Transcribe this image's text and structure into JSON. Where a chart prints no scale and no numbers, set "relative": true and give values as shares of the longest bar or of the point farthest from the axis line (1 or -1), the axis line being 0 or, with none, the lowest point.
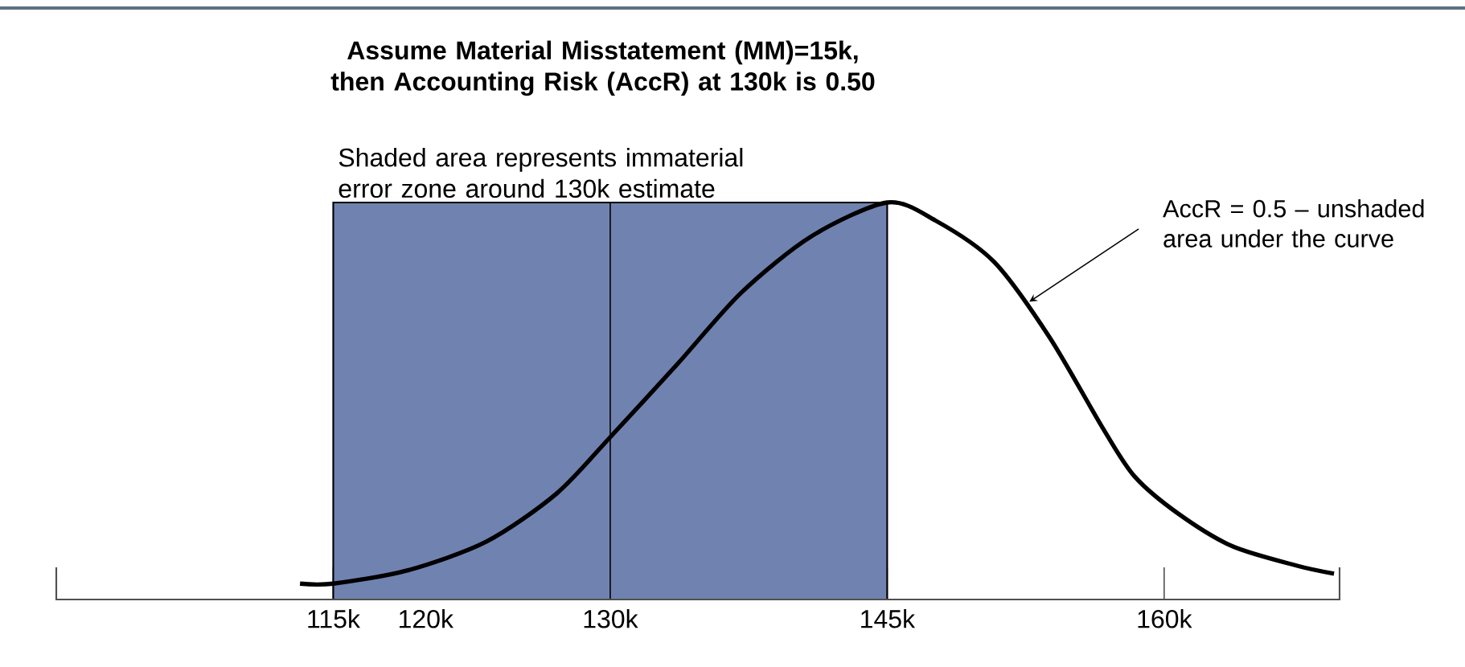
{
  "chart_data": {
    "type": "line",
    "relative": true,
    "title": "Assume Material Misstatement (MM)=15k, then Accounting Risk (AccR) at 130k is 0.50",
    "x": [
      113.2,
      115,
      119.0,
      123.3,
      127.1,
      130,
      133.6,
      137.1,
      140.9,
      145,
      147.6,
      150.8,
      153.8,
      156.7,
      158.4,
      160.8,
      163.7,
      167.2,
      169.2
    ],
    "series": [
      {
        "color": "#000000",
        "values": [
          0.04,
          0.04,
          0.073,
          0.146,
          0.267,
          0.409,
          0.591,
          0.773,
          0.915,
          1.0,
          0.955,
          0.85,
          0.66,
          0.43,
          0.31,
          0.215,
          0.134,
          0.085,
          0.065
        ]
      }
    ],
    "xlim": [
      100,
      169.5
    ],
    "xticks": [
      {
        "value": 115,
        "label": "115k"
      },
      {
        "value": 120,
        "label": "120k"
      },
      {
        "value": 130,
        "label": "130k"
      },
      {
        "value": 145,
        "label": "145k"
      },
      {
        "value": 160,
        "label": "160k"
      }
    ],
    "bands": [
      {
        "axis": "x",
        "from": 115,
        "to": 145,
        "label": "Shaded area represents immaterial error zone around 130k estimate",
        "color": "#7082b0"
      }
    ],
    "ref_lines": [
      {
        "axis": "x",
        "value": 130,
        "color": "#000000"
      }
    ],
    "annotations": [
      {
        "text": "AccR = 0.5 – unshaded area under the curve",
        "x": 152.7,
        "y": 0.75
      }
    ]
  }
}
